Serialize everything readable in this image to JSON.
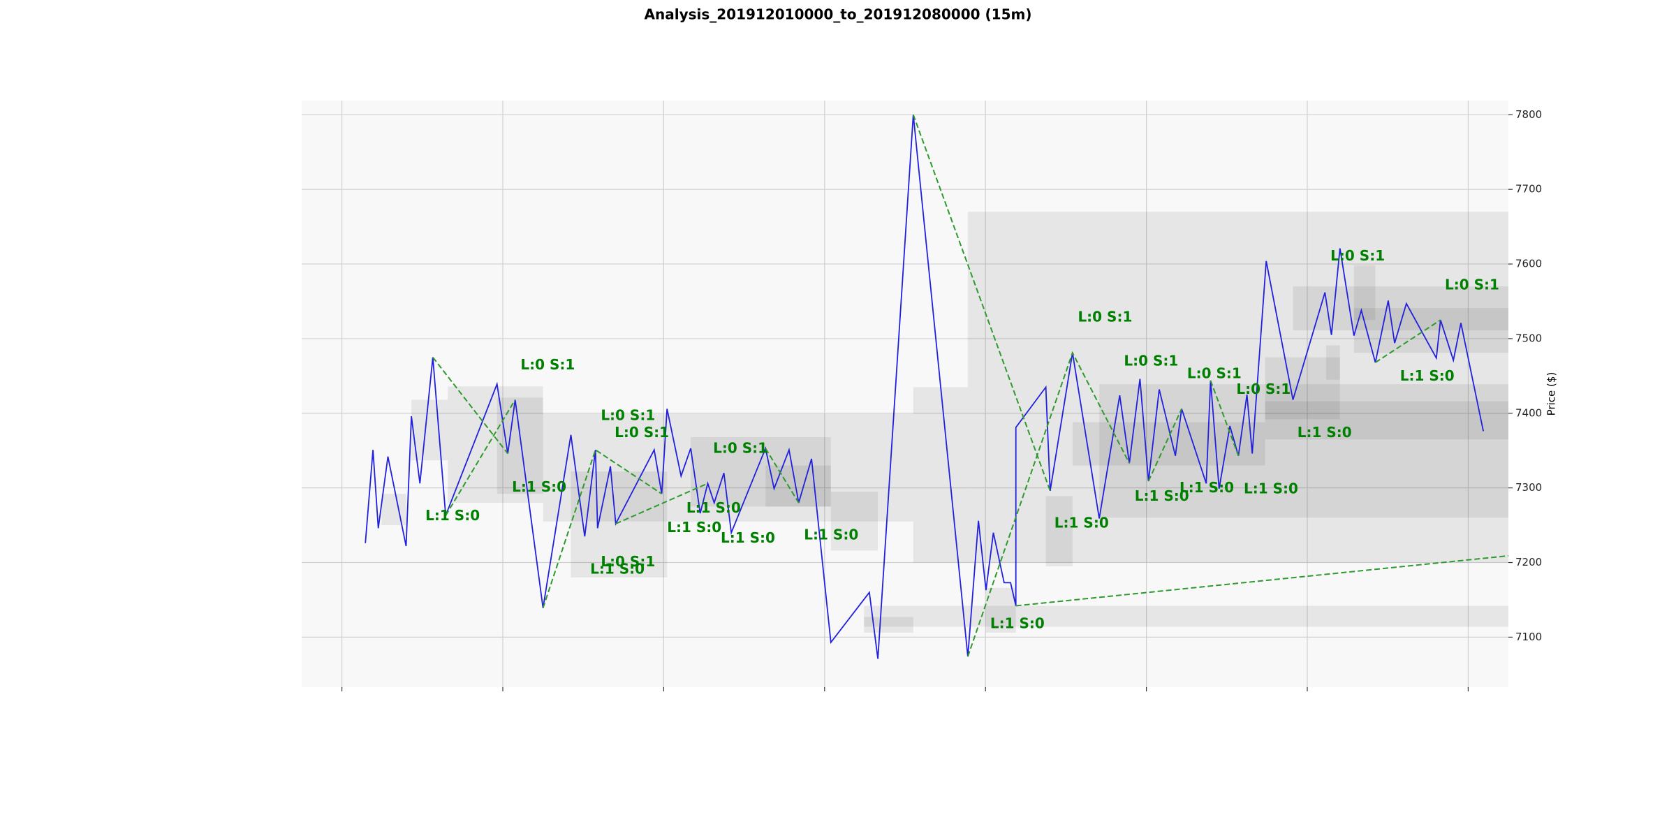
{
  "chart_data": {
    "type": "line",
    "title": "Analysis_201912010000_to_201912080000 (15m)",
    "y_label": "Price ($)",
    "xlim": [
      -0.25,
      7.25
    ],
    "xticks": [
      0,
      1,
      2,
      3,
      4,
      5,
      6,
      7
    ],
    "ylim": [
      7033,
      7819
    ],
    "yticks": [
      7100,
      7200,
      7300,
      7400,
      7500,
      7600,
      7700,
      7800
    ],
    "grid": true,
    "background": "#f8f8f8",
    "zone_color": "#000000",
    "zones": [
      {
        "x": [
          3.89,
          7.25
        ],
        "y": [
          7200,
          7670
        ]
      },
      {
        "x": [
          3.551,
          3.89
        ],
        "y": [
          7200,
          7435
        ]
      },
      {
        "x": [
          3.245,
          7.25
        ],
        "y": [
          7114,
          7142
        ]
      },
      {
        "x": [
          3.245,
          3.551
        ],
        "y": [
          7106,
          7127
        ]
      },
      {
        "x": [
          4.707,
          7.25
        ],
        "y": [
          7260,
          7439
        ]
      },
      {
        "x": [
          4.541,
          5.738
        ],
        "y": [
          7330,
          7388
        ]
      },
      {
        "x": [
          5.738,
          7.25
        ],
        "y": [
          7365,
          7416
        ]
      },
      {
        "x": [
          5.911,
          7.25
        ],
        "y": [
          7511,
          7570
        ]
      },
      {
        "x": [
          6.29,
          6.423
        ],
        "y": [
          7525,
          7598
        ]
      },
      {
        "x": [
          6.117,
          6.203
        ],
        "y": [
          7445,
          7491
        ]
      },
      {
        "x": [
          5.738,
          6.203
        ],
        "y": [
          7392,
          7475
        ]
      },
      {
        "x": [
          6.29,
          7.25
        ],
        "y": [
          7481,
          7541
        ]
      },
      {
        "x": [
          0.658,
          1.25
        ],
        "y": [
          7280,
          7436
        ]
      },
      {
        "x": [
          0.964,
          1.25
        ],
        "y": [
          7292,
          7421
        ]
      },
      {
        "x": [
          1.25,
          3.551
        ],
        "y": [
          7255,
          7399
        ]
      },
      {
        "x": [
          1.423,
          2.021
        ],
        "y": [
          7180,
          7322
        ]
      },
      {
        "x": [
          2.168,
          3.039
        ],
        "y": [
          7275,
          7368
        ]
      },
      {
        "x": [
          3.039,
          3.331
        ],
        "y": [
          7216,
          7295
        ]
      },
      {
        "x": [
          2.633,
          3.039
        ],
        "y": [
          7275,
          7330
        ]
      },
      {
        "x": [
          0.246,
          0.399
        ],
        "y": [
          7250,
          7292
        ]
      },
      {
        "x": [
          0.432,
          0.658
        ],
        "y": [
          7337,
          7418
        ]
      },
      {
        "x": [
          4.003,
          4.189
        ],
        "y": [
          7106,
          7166
        ]
      },
      {
        "x": [
          4.375,
          4.541
        ],
        "y": [
          7195,
          7289
        ]
      }
    ],
    "series": [
      {
        "color": "#2020dd",
        "dashed": false,
        "x": [
          0.146,
          0.193,
          0.226,
          0.286,
          0.399,
          0.432,
          0.485,
          0.565,
          0.645,
          0.964,
          1.031,
          1.077,
          1.25,
          1.423,
          1.509,
          1.576,
          1.589,
          1.669,
          1.702,
          1.941,
          1.988,
          2.021,
          2.108,
          2.168,
          2.227,
          2.274,
          2.314,
          2.374,
          2.42,
          2.633,
          2.686,
          2.779,
          2.839,
          2.919,
          3.039,
          3.278,
          3.331,
          3.551,
          3.89,
          3.956,
          4.003,
          4.049,
          4.116,
          4.156,
          4.189,
          4.189,
          4.375,
          4.402,
          4.541,
          4.707,
          4.834,
          4.894,
          4.96,
          5.013,
          5.08,
          5.18,
          5.219,
          5.372,
          5.399,
          5.452,
          5.519,
          5.572,
          5.625,
          5.658,
          5.745,
          5.911,
          6.11,
          6.15,
          6.203,
          6.29,
          6.336,
          6.423,
          6.503,
          6.543,
          6.616,
          6.802,
          6.828,
          6.908,
          6.955,
          7.094
        ],
        "values": [
          7226,
          7351,
          7246,
          7342,
          7222,
          7396,
          7306,
          7475,
          7263,
          7439,
          7346,
          7418,
          7139,
          7371,
          7235,
          7351,
          7246,
          7329,
          7252,
          7351,
          7292,
          7406,
          7316,
          7353,
          7266,
          7306,
          7280,
          7320,
          7240,
          7353,
          7299,
          7351,
          7280,
          7339,
          7093,
          7160,
          7071,
          7800,
          7074,
          7256,
          7163,
          7240,
          7173,
          7173,
          7142,
          7381,
          7435,
          7296,
          7481,
          7259,
          7424,
          7333,
          7446,
          7309,
          7432,
          7343,
          7406,
          7306,
          7444,
          7299,
          7383,
          7343,
          7425,
          7346,
          7604,
          7418,
          7562,
          7505,
          7621,
          7504,
          7538,
          7468,
          7551,
          7494,
          7547,
          7474,
          7525,
          7471,
          7521,
          7376
        ]
      },
      {
        "color": "#2e9a2e",
        "dashed": true,
        "x": [
          0.565,
          1.031,
          null,
          0.645,
          1.077,
          null,
          1.25,
          1.576,
          1.988,
          null,
          1.702,
          2.274,
          null,
          2.633,
          2.839,
          null,
          3.551,
          4.402,
          null,
          3.89,
          4.541,
          4.894,
          null,
          5.013,
          5.219,
          null,
          5.399,
          5.572,
          null,
          4.189,
          7.25,
          null,
          6.423,
          6.828
        ],
        "values": [
          7475,
          7346,
          null,
          7263,
          7418,
          null,
          7139,
          7351,
          7292,
          null,
          7252,
          7306,
          null,
          7353,
          7280,
          null,
          7800,
          7296,
          null,
          7074,
          7481,
          7333,
          null,
          7309,
          7406,
          null,
          7444,
          7343,
          null,
          7142,
          7209,
          null,
          7468,
          7525
        ]
      }
    ],
    "annotation_color": "#008000",
    "annotations": [
      {
        "text": "L:0 S:1",
        "x": 1.11,
        "y": 7464
      },
      {
        "text": "L:1 S:0",
        "x": 1.057,
        "y": 7300
      },
      {
        "text": "L:1 S:0",
        "x": 0.519,
        "y": 7262
      },
      {
        "text": "L:0 S:1",
        "x": 1.609,
        "y": 7396
      },
      {
        "text": "L:0 S:1",
        "x": 1.695,
        "y": 7373
      },
      {
        "text": "L:0 S:1",
        "x": 1.609,
        "y": 7200
      },
      {
        "text": "L:1 S:0",
        "x": 1.543,
        "y": 7190
      },
      {
        "text": "L:0 S:1",
        "x": 2.307,
        "y": 7352
      },
      {
        "text": "L:1 S:0",
        "x": 2.141,
        "y": 7272
      },
      {
        "text": "L:1 S:0",
        "x": 2.021,
        "y": 7246
      },
      {
        "text": "L:1 S:0",
        "x": 2.354,
        "y": 7232
      },
      {
        "text": "L:1 S:0",
        "x": 2.872,
        "y": 7236
      },
      {
        "text": "L:0 S:1",
        "x": 4.574,
        "y": 7528
      },
      {
        "text": "L:1 S:0",
        "x": 4.428,
        "y": 7252
      },
      {
        "text": "L:1 S:0",
        "x": 4.029,
        "y": 7117
      },
      {
        "text": "L:0 S:1",
        "x": 4.86,
        "y": 7469
      },
      {
        "text": "L:1 S:0",
        "x": 4.927,
        "y": 7288
      },
      {
        "text": "L:0 S:1",
        "x": 5.253,
        "y": 7452
      },
      {
        "text": "L:1 S:0",
        "x": 5.206,
        "y": 7299
      },
      {
        "text": "L:0 S:1",
        "x": 5.559,
        "y": 7431
      },
      {
        "text": "L:1 S:0",
        "x": 5.605,
        "y": 7298
      },
      {
        "text": "L:0 S:1",
        "x": 6.144,
        "y": 7610
      },
      {
        "text": "L:1 S:0",
        "x": 5.938,
        "y": 7373
      },
      {
        "text": "L:0 S:1",
        "x": 6.855,
        "y": 7571
      },
      {
        "text": "L:1 S:0",
        "x": 6.576,
        "y": 7449
      }
    ]
  }
}
